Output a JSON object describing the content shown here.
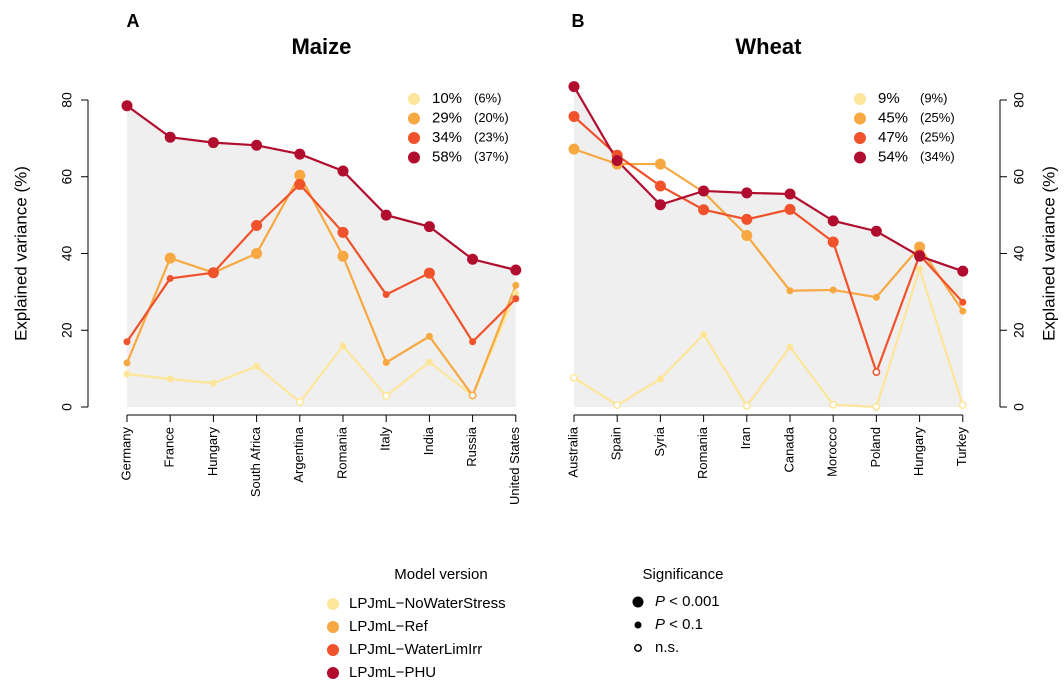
{
  "chart_data": [
    {
      "type": "line",
      "panel": "A",
      "title": "Maize",
      "ylabel": "Explained variance (%)",
      "axis_side": "left",
      "shade_under": "LPJmL−PHU",
      "categories": [
        "Germany",
        "France",
        "Hungary",
        "South Africa",
        "Argentina",
        "Romania",
        "Italy",
        "India",
        "Russia",
        "United States"
      ],
      "ylim": [
        0,
        80
      ],
      "yticks": [
        0,
        20,
        40,
        60,
        80
      ],
      "series": [
        {
          "name": "LPJmL−NoWaterStress",
          "color": "#fde69a",
          "values": [
            8.6,
            7.3,
            6.2,
            10.6,
            1.3,
            15.9,
            2.9,
            11.7,
            3,
            29.6
          ],
          "significance": [
            "small",
            "small",
            "small",
            "small",
            "open",
            "small",
            "open",
            "small",
            "open",
            "small"
          ]
        },
        {
          "name": "LPJmL−Ref",
          "color": "#f7a841",
          "values": [
            11.5,
            38.8,
            35,
            40,
            60.4,
            39.3,
            11.6,
            18.4,
            3,
            31.7
          ],
          "significance": [
            "small",
            "large",
            "small",
            "large",
            "large",
            "large",
            "small",
            "small",
            "open",
            "small"
          ]
        },
        {
          "name": "LPJmL−WaterLimIrr",
          "color": "#f0522b",
          "values": [
            17,
            33.5,
            35,
            47.3,
            58,
            45.5,
            29.3,
            34.9,
            17,
            28.2
          ],
          "significance": [
            "small",
            "small",
            "large",
            "large",
            "large",
            "large",
            "small",
            "large",
            "small",
            "small"
          ]
        },
        {
          "name": "LPJmL−PHU",
          "color": "#b10d2f",
          "values": [
            78.5,
            70.3,
            68.9,
            68.2,
            65.9,
            61.5,
            50,
            47,
            38.5,
            35.7
          ],
          "significance": [
            "large",
            "large",
            "large",
            "large",
            "large",
            "large",
            "large",
            "large",
            "large",
            "large"
          ]
        }
      ],
      "stats": [
        {
          "value": "10%",
          "note": "(6%)"
        },
        {
          "value": "29%",
          "note": "(20%)"
        },
        {
          "value": "34%",
          "note": "(23%)"
        },
        {
          "value": "58%",
          "note": "(37%)"
        }
      ]
    },
    {
      "type": "line",
      "panel": "B",
      "title": "Wheat",
      "ylabel": "Explained variance (%)",
      "axis_side": "right",
      "shade_under": "LPJmL−PHU",
      "categories": [
        "Australia",
        "Spain",
        "Syria",
        "Romania",
        "Iran",
        "Canada",
        "Morocco",
        "Poland",
        "Hungary",
        "Turkey"
      ],
      "ylim": [
        0,
        80
      ],
      "yticks": [
        0,
        20,
        40,
        60,
        80
      ],
      "series": [
        {
          "name": "LPJmL−NoWaterStress",
          "color": "#fde69a",
          "values": [
            7.6,
            0.5,
            7.3,
            18.9,
            0.3,
            15.6,
            0.6,
            0,
            36,
            0.5
          ],
          "significance": [
            "open",
            "open",
            "small",
            "small",
            "open",
            "small",
            "open",
            "open",
            "small",
            "open"
          ]
        },
        {
          "name": "LPJmL−Ref",
          "color": "#f7a841",
          "values": [
            67.2,
            63.3,
            63.3,
            56,
            44.7,
            30.3,
            30.5,
            28.6,
            41.7,
            25
          ],
          "significance": [
            "large",
            "large",
            "large",
            "small",
            "large",
            "small",
            "small",
            "small",
            "large",
            "small"
          ]
        },
        {
          "name": "LPJmL−WaterLimIrr",
          "color": "#f0522b",
          "values": [
            75.7,
            65.6,
            57.6,
            51.4,
            48.9,
            51.5,
            43,
            9.1,
            39.6,
            27.3
          ],
          "significance": [
            "large",
            "large",
            "large",
            "large",
            "large",
            "large",
            "large",
            "open",
            "large",
            "small"
          ]
        },
        {
          "name": "LPJmL−PHU",
          "color": "#b10d2f",
          "values": [
            83.5,
            64.2,
            52.7,
            56.3,
            55.8,
            55.5,
            48.5,
            45.8,
            39.3,
            35.4
          ],
          "significance": [
            "large",
            "large",
            "large",
            "large",
            "large",
            "large",
            "large",
            "large",
            "large",
            "large"
          ]
        }
      ],
      "stats": [
        {
          "value": "9%",
          "note": "(9%)"
        },
        {
          "value": "45%",
          "note": "(25%)"
        },
        {
          "value": "47%",
          "note": "(25%)"
        },
        {
          "value": "54%",
          "note": "(34%)"
        }
      ]
    }
  ],
  "legend": {
    "title": "Model version"
  },
  "significance_legend": {
    "title": "Significance",
    "items": [
      {
        "marker": "large",
        "symbol": "P",
        "text": " < 0.001"
      },
      {
        "marker": "small",
        "symbol": "P",
        "text": " < 0.1"
      },
      {
        "marker": "open",
        "symbol": "",
        "text": "n.s."
      }
    ]
  }
}
